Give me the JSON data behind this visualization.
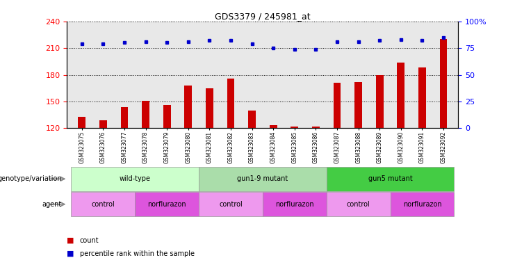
{
  "title": "GDS3379 / 245981_at",
  "samples": [
    "GSM323075",
    "GSM323076",
    "GSM323077",
    "GSM323078",
    "GSM323079",
    "GSM323080",
    "GSM323081",
    "GSM323082",
    "GSM323083",
    "GSM323084",
    "GSM323085",
    "GSM323086",
    "GSM323087",
    "GSM323088",
    "GSM323089",
    "GSM323090",
    "GSM323091",
    "GSM323092"
  ],
  "counts": [
    133,
    129,
    144,
    151,
    146,
    168,
    165,
    176,
    140,
    123,
    122,
    122,
    171,
    172,
    180,
    194,
    188,
    220
  ],
  "percentile_ranks": [
    79,
    79,
    80,
    81,
    80,
    81,
    82,
    82,
    79,
    75,
    74,
    74,
    81,
    81,
    82,
    83,
    82,
    85
  ],
  "ylim_left": [
    120,
    240
  ],
  "ylim_right": [
    0,
    100
  ],
  "yticks_left": [
    120,
    150,
    180,
    210,
    240
  ],
  "yticks_right": [
    0,
    25,
    50,
    75,
    100
  ],
  "bar_color": "#cc0000",
  "dot_color": "#0000cc",
  "plot_bg": "#e8e8e8",
  "genotype_groups": [
    {
      "label": "wild-type",
      "start": 0,
      "end": 5,
      "color": "#ccffcc"
    },
    {
      "label": "gun1-9 mutant",
      "start": 6,
      "end": 11,
      "color": "#aaddaa"
    },
    {
      "label": "gun5 mutant",
      "start": 12,
      "end": 17,
      "color": "#44cc44"
    }
  ],
  "agent_groups": [
    {
      "label": "control",
      "start": 0,
      "end": 2,
      "color": "#ee99ee"
    },
    {
      "label": "norflurazon",
      "start": 3,
      "end": 5,
      "color": "#dd55dd"
    },
    {
      "label": "control",
      "start": 6,
      "end": 8,
      "color": "#ee99ee"
    },
    {
      "label": "norflurazon",
      "start": 9,
      "end": 11,
      "color": "#dd55dd"
    },
    {
      "label": "control",
      "start": 12,
      "end": 14,
      "color": "#ee99ee"
    },
    {
      "label": "norflurazon",
      "start": 15,
      "end": 17,
      "color": "#dd55dd"
    }
  ]
}
